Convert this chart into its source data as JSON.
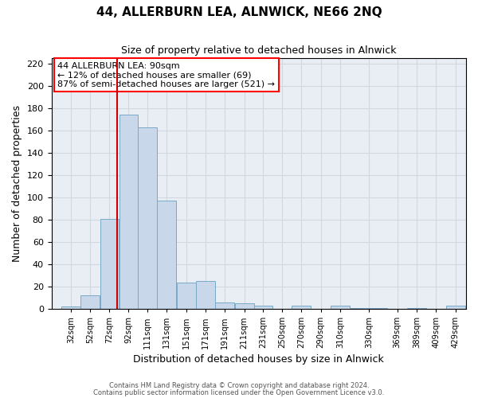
{
  "title": "44, ALLERBURN LEA, ALNWICK, NE66 2NQ",
  "subtitle": "Size of property relative to detached houses in Alnwick",
  "xlabel": "Distribution of detached houses by size in Alnwick",
  "ylabel": "Number of detached properties",
  "bar_left_edges": [
    32,
    52,
    72,
    92,
    111,
    131,
    151,
    171,
    191,
    211,
    231,
    250,
    270,
    290,
    310,
    330,
    369,
    389,
    409,
    429
  ],
  "bar_widths": [
    20,
    20,
    20,
    19,
    20,
    20,
    20,
    20,
    20,
    20,
    19,
    20,
    20,
    20,
    20,
    39,
    20,
    20,
    20,
    20
  ],
  "bar_heights": [
    2,
    12,
    81,
    174,
    163,
    97,
    24,
    25,
    6,
    5,
    3,
    0,
    3,
    0,
    3,
    1,
    0,
    1,
    0,
    3
  ],
  "tick_labels": [
    "32sqm",
    "52sqm",
    "72sqm",
    "92sqm",
    "111sqm",
    "131sqm",
    "151sqm",
    "171sqm",
    "191sqm",
    "211sqm",
    "231sqm",
    "250sqm",
    "270sqm",
    "290sqm",
    "310sqm",
    "330sqm",
    "369sqm",
    "389sqm",
    "409sqm",
    "429sqm"
  ],
  "bar_color": "#c8d8ea",
  "bar_edge_color": "#7aaac8",
  "vline_x": 90,
  "vline_color": "#cc0000",
  "annotation_lines": [
    "44 ALLERBURN LEA: 90sqm",
    "← 12% of detached houses are smaller (69)",
    "87% of semi-detached houses are larger (521) →"
  ],
  "ylim": [
    0,
    225
  ],
  "yticks": [
    0,
    20,
    40,
    60,
    80,
    100,
    120,
    140,
    160,
    180,
    200,
    220
  ],
  "grid_color": "#d0d8e0",
  "bg_color": "#e8eef4",
  "footer_line1": "Contains HM Land Registry data © Crown copyright and database right 2024.",
  "footer_line2": "Contains public sector information licensed under the Open Government Licence v3.0."
}
